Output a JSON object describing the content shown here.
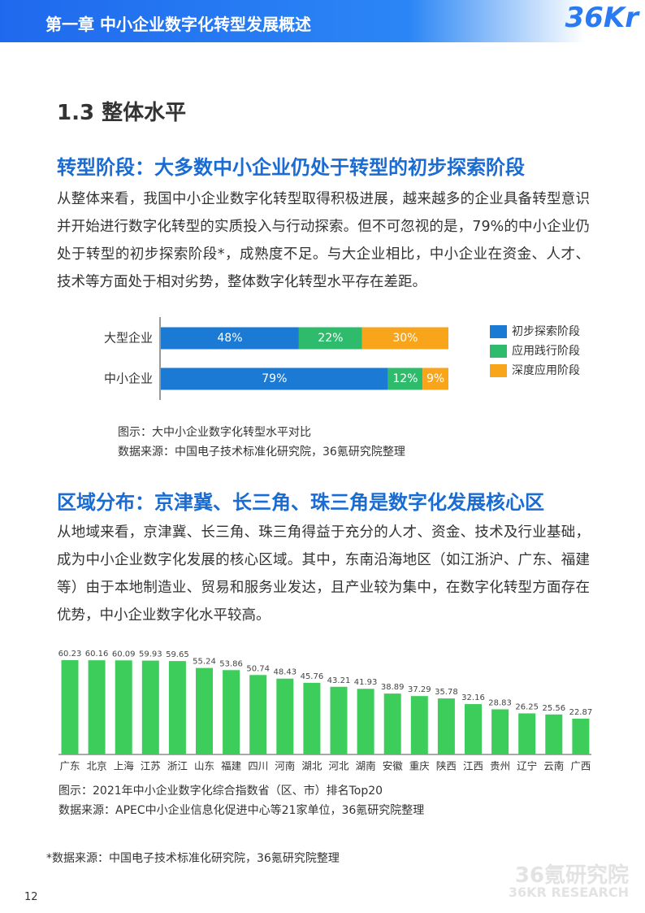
{
  "header": {
    "title": "第一章 中小企业数字化转型发展概述",
    "logo": "36Kr"
  },
  "section_title": "1.3 整体水平",
  "subheadings": [
    "转型阶段：大多数中小企业仍处于转型的初步探索阶段",
    "区域分布：京津冀、长三角、珠三角是数字化发展核心区"
  ],
  "paragraphs": [
    "从整体来看，我国中小企业数字化转型取得积极进展，越来越多的企业具备转型意识并开始进行数字化转型的实质投入与行动探索。但不可忽视的是，79%的中小企业仍处于转型的初步探索阶段*，成熟度不足。与大企业相比，中小企业在资金、人才、技术等方面处于相对劣势，整体数字化转型水平存在差距。",
    "从地域来看，京津冀、长三角、珠三角得益于充分的人才、资金、技术及行业基础，成为中小企业数字化发展的核心区域。其中，东南沿海地区（如江浙沪、广东、福建等）由于本地制造业、贸易和服务业发达，且产业较为集中，在数字化转型方面存在优势，中小企业数字化水平较高。"
  ],
  "chart_data": [
    {
      "type": "bar",
      "orientation": "horizontal",
      "stacked": true,
      "legend": "right",
      "categories": [
        "大型企业",
        "中小企业"
      ],
      "series": [
        {
          "name": "初步探索阶段",
          "color": "#1b7ad4",
          "values": [
            48,
            79
          ],
          "value_labels": [
            "48%",
            "79%"
          ]
        },
        {
          "name": "应用践行阶段",
          "color": "#2fbb6c",
          "values": [
            22,
            12
          ],
          "value_labels": [
            "22%",
            "12%"
          ]
        },
        {
          "name": "深度应用阶段",
          "color": "#f8a51c",
          "values": [
            30,
            9
          ],
          "value_labels": [
            "30%",
            "9%"
          ]
        }
      ],
      "notes": [
        "图示：大中小企业数字化转型水平对比",
        "数据来源：中国电子技术标准化研究院，36氪研究院整理"
      ]
    },
    {
      "type": "bar",
      "orientation": "vertical",
      "color": "#3ccd5a",
      "categories": [
        "广东",
        "北京",
        "上海",
        "江苏",
        "浙江",
        "山东",
        "福建",
        "四川",
        "河南",
        "湖北",
        "河北",
        "湖南",
        "安徽",
        "重庆",
        "陕西",
        "江西",
        "贵州",
        "辽宁",
        "云南",
        "广西"
      ],
      "values": [
        60.23,
        60.16,
        60.09,
        59.93,
        59.65,
        55.24,
        53.86,
        50.74,
        48.43,
        45.76,
        43.21,
        41.93,
        38.89,
        37.29,
        35.78,
        32.16,
        28.83,
        26.25,
        25.56,
        22.87
      ],
      "notes": [
        "图示：2021年中小企业数字化综合指数省（区、市）排名Top20",
        "数据来源：APEC中小企业信息化促进中心等21家单位，36氪研究院整理"
      ]
    }
  ],
  "footnote": "*数据来源：中国电子技术标准化研究院，36氪研究院整理",
  "page_number": "12",
  "watermark": [
    "36氪研究院",
    "36KR RESEARCH"
  ]
}
